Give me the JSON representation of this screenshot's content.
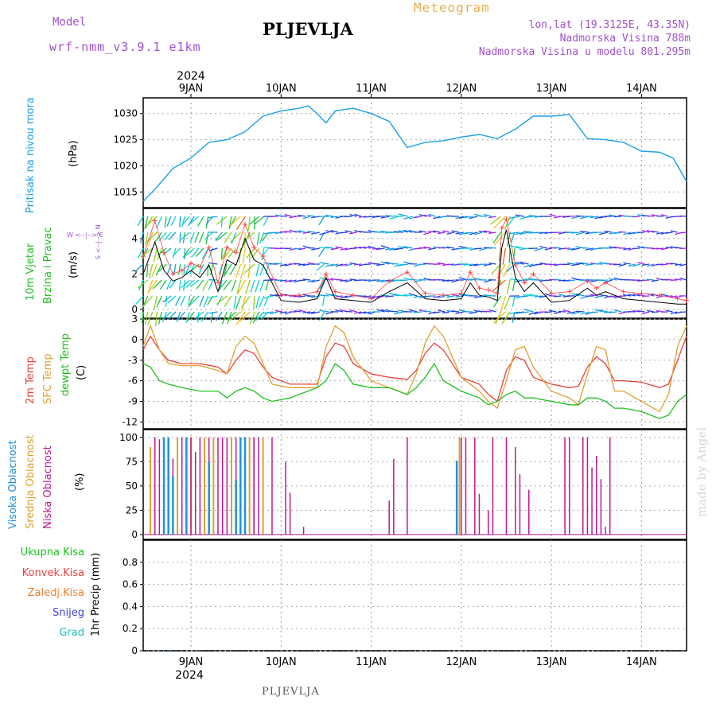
{
  "header": {
    "model_label": "Model",
    "model_name": "wrf-nmm_v3.9.1 e1km",
    "station": "PLJEVLJA",
    "title": "Meteogram",
    "lonlat": "lon,lat (19.3125E, 43.35N)",
    "altitude": "Nadmorska Visina 788m",
    "model_altitude": "Nadmorska Visina u modelu 801.295m"
  },
  "footer": {
    "station": "PLJEVLJA",
    "watermark": "made by Angel"
  },
  "colors": {
    "pressure": "#1aa0e8",
    "temp2m": "#e84040",
    "sfctemp": "#e0a030",
    "dewpt": "#20c020",
    "high_cloud": "#2090e0",
    "mid_cloud": "#e0a030",
    "low_cloud": "#c01890",
    "wind_speed": "#000000",
    "gust": "#ff4040",
    "accent_purple": "#a050d0"
  },
  "time_axis": {
    "year": "2024",
    "days": [
      "9JAN",
      "10JAN",
      "11JAN",
      "12JAN",
      "13JAN",
      "14JAN"
    ],
    "day_values": [
      1,
      2,
      3,
      4,
      5,
      6
    ],
    "range": [
      0.47,
      6.5
    ]
  },
  "panels": {
    "pressure": {
      "label1": "Pritisak na nivou mora",
      "unit": "(hPa)"
    },
    "wind": {
      "label1": "10m Vjetar",
      "label2": "Brzina i Pravac",
      "unit": "(m/s)",
      "compass": "W <--|--> E",
      "compass2": "S <--|--> N"
    },
    "temp": {
      "label1": "2m Temp",
      "label2": "SFC Temp",
      "label3": "dewpt Temp",
      "unit": "(C)"
    },
    "cloud": {
      "label1": "Visoka Oblacnost",
      "label2": "Srednja Oblacnost",
      "label3": "Niska Oblacnost",
      "unit": "(%)"
    },
    "precip": {
      "legend": [
        "Ukupna Kisa",
        "Konvek.Kisa",
        "Zaledj.Kisa",
        "Snijeg",
        "Grad"
      ],
      "unit": "1hr Precip (mm)"
    }
  },
  "chart_data": [
    {
      "type": "line",
      "name": "pressure",
      "ylim": [
        1012,
        1033
      ],
      "yticks": [
        "1015",
        "1020",
        "1025",
        "1030"
      ],
      "ytick_values": [
        1015,
        1020,
        1025,
        1030
      ],
      "x": [
        0.47,
        0.6,
        0.8,
        1.0,
        1.2,
        1.4,
        1.6,
        1.8,
        2.0,
        2.2,
        2.3,
        2.4,
        2.5,
        2.6,
        2.8,
        3.0,
        3.2,
        3.4,
        3.6,
        3.8,
        4.0,
        4.2,
        4.4,
        4.6,
        4.8,
        5.0,
        5.2,
        5.4,
        5.6,
        5.8,
        6.0,
        6.2,
        6.35,
        6.5
      ],
      "y": [
        1013.2,
        1015.5,
        1019.5,
        1021.5,
        1024.5,
        1025.0,
        1026.5,
        1029.5,
        1030.5,
        1031.0,
        1031.5,
        1030.0,
        1028.2,
        1030.5,
        1031.0,
        1030.0,
        1028.5,
        1023.5,
        1024.5,
        1024.8,
        1025.5,
        1026.0,
        1025.2,
        1027.0,
        1029.5,
        1029.5,
        1029.8,
        1025.2,
        1025.0,
        1024.5,
        1022.8,
        1022.6,
        1021.5,
        1017.0
      ]
    },
    {
      "type": "line",
      "name": "wind",
      "ylim": [
        -0.5,
        5.7
      ],
      "yticks": [
        "0",
        "2",
        "4"
      ],
      "ytick_values": [
        0,
        2,
        4
      ],
      "x": [
        0.47,
        0.6,
        0.7,
        0.8,
        0.9,
        1.0,
        1.1,
        1.2,
        1.3,
        1.4,
        1.5,
        1.6,
        1.7,
        1.8,
        2.0,
        2.2,
        2.4,
        2.5,
        2.6,
        2.8,
        3.0,
        3.2,
        3.4,
        3.6,
        3.8,
        4.0,
        4.1,
        4.2,
        4.3,
        4.4,
        4.45,
        4.5,
        4.6,
        4.7,
        4.8,
        5.0,
        5.2,
        5.4,
        5.5,
        5.6,
        5.8,
        6.0,
        6.2,
        6.4,
        6.5
      ],
      "speed": [
        2.0,
        3.8,
        2.2,
        1.6,
        1.8,
        2.2,
        1.8,
        2.5,
        1.0,
        2.8,
        2.5,
        4.0,
        2.8,
        2.5,
        0.5,
        0.4,
        0.6,
        1.8,
        0.6,
        0.5,
        0.4,
        1.0,
        1.5,
        0.6,
        0.5,
        0.6,
        1.5,
        0.8,
        0.7,
        0.5,
        3.5,
        4.5,
        1.8,
        1.0,
        1.5,
        0.4,
        0.5,
        1.2,
        0.8,
        1.0,
        0.6,
        0.5,
        0.4,
        0.3,
        0.3
      ],
      "gust": [
        3.0,
        5.0,
        3.2,
        2.0,
        2.2,
        2.6,
        2.4,
        3.5,
        1.5,
        3.5,
        3.2,
        4.8,
        3.5,
        3.0,
        0.8,
        0.8,
        1.0,
        2.0,
        1.0,
        0.8,
        0.6,
        1.6,
        2.1,
        0.9,
        0.8,
        0.9,
        2.1,
        1.2,
        1.1,
        0.9,
        4.6,
        5.1,
        2.5,
        1.5,
        2.0,
        0.9,
        1.0,
        1.6,
        1.2,
        1.5,
        1.0,
        0.9,
        0.8,
        0.6,
        0.5
      ]
    },
    {
      "type": "line",
      "name": "temperature",
      "ylim": [
        -13,
        3
      ],
      "yticks": [
        "-12",
        "-9",
        "-6",
        "-3",
        "0",
        "3"
      ],
      "ytick_values": [
        -12,
        -9,
        -6,
        -3,
        0,
        3
      ],
      "x": [
        0.47,
        0.55,
        0.65,
        0.75,
        0.9,
        1.1,
        1.3,
        1.4,
        1.5,
        1.6,
        1.7,
        1.8,
        1.9,
        2.1,
        2.3,
        2.4,
        2.5,
        2.6,
        2.7,
        2.8,
        3.0,
        3.2,
        3.4,
        3.5,
        3.6,
        3.7,
        3.8,
        4.0,
        4.2,
        4.3,
        4.4,
        4.5,
        4.6,
        4.7,
        4.8,
        5.0,
        5.2,
        5.3,
        5.4,
        5.5,
        5.6,
        5.7,
        5.8,
        6.0,
        6.2,
        6.3,
        6.4,
        6.5
      ],
      "t2m": [
        -1.5,
        0.5,
        -1.5,
        -3.0,
        -3.5,
        -3.5,
        -4.0,
        -5.0,
        -3.0,
        -1.5,
        -2.0,
        -4.0,
        -5.5,
        -6.5,
        -6.5,
        -6.5,
        -2.5,
        -0.5,
        -1.0,
        -3.5,
        -5.0,
        -5.5,
        -5.8,
        -4.5,
        -2.0,
        -0.5,
        -1.5,
        -5.5,
        -6.5,
        -8.0,
        -9.0,
        -4.5,
        -2.5,
        -3.0,
        -5.5,
        -6.5,
        -7.0,
        -6.8,
        -4.0,
        -2.5,
        -3.5,
        -6.0,
        -6.0,
        -6.2,
        -7.0,
        -6.5,
        -3.0,
        0.5
      ],
      "sfc": [
        -1.0,
        2.0,
        -1.5,
        -3.5,
        -3.8,
        -3.8,
        -4.5,
        -5.0,
        -1.0,
        0.5,
        -0.5,
        -3.5,
        -6.5,
        -7.0,
        -7.0,
        -7.0,
        -1.0,
        2.0,
        1.0,
        -2.5,
        -6.0,
        -7.0,
        -8.0,
        -5.0,
        -0.5,
        2.0,
        0.5,
        -5.5,
        -7.5,
        -9.0,
        -10.0,
        -6.0,
        -1.5,
        -1.0,
        -4.0,
        -7.5,
        -8.5,
        -9.5,
        -5.0,
        -1.0,
        -1.5,
        -7.5,
        -7.5,
        -9.0,
        -10.5,
        -8.0,
        -1.0,
        2.0
      ],
      "dewpt": [
        -3.5,
        -4.0,
        -6.0,
        -6.5,
        -7.0,
        -7.5,
        -7.5,
        -8.5,
        -7.5,
        -7.0,
        -7.5,
        -8.5,
        -9.0,
        -8.5,
        -7.5,
        -7.0,
        -6.0,
        -3.5,
        -4.5,
        -6.5,
        -7.0,
        -7.0,
        -8.0,
        -7.0,
        -5.5,
        -3.5,
        -6.0,
        -7.5,
        -8.5,
        -9.5,
        -9.0,
        -8.0,
        -7.5,
        -8.5,
        -8.5,
        -9.0,
        -9.5,
        -9.5,
        -8.5,
        -8.5,
        -9.0,
        -10.0,
        -10.0,
        -10.5,
        -11.5,
        -11.0,
        -9.0,
        -8.0
      ]
    },
    {
      "type": "bar",
      "name": "cloud",
      "ylim": [
        -5,
        108
      ],
      "yticks": [
        "0",
        "25",
        "50",
        "75",
        "100"
      ],
      "ytick_values": [
        0,
        25,
        50,
        75,
        100
      ],
      "low_x": [
        0.6,
        0.65,
        0.75,
        0.8,
        0.9,
        1.0,
        1.05,
        1.1,
        1.2,
        1.3,
        1.35,
        1.4,
        1.5,
        1.6,
        1.7,
        1.75,
        1.9,
        2.05,
        2.1,
        2.25,
        3.2,
        3.25,
        3.4,
        4.0,
        4.05,
        4.15,
        4.2,
        4.3,
        4.35,
        4.5,
        4.6,
        4.65,
        4.75,
        5.15,
        5.2,
        5.35,
        5.4,
        5.45,
        5.5,
        5.55,
        5.6,
        5.65,
        5.75
      ],
      "low_y": [
        100,
        98,
        100,
        78,
        100,
        100,
        85,
        100,
        100,
        100,
        100,
        100,
        100,
        100,
        100,
        100,
        100,
        75,
        43,
        8,
        35,
        78,
        100,
        100,
        100,
        100,
        42,
        25,
        100,
        100,
        90,
        62,
        46,
        100,
        100,
        100,
        100,
        69,
        81,
        57,
        8,
        100,
        0
      ],
      "mid_x": [
        0.55,
        0.7,
        0.85,
        1.0,
        1.15,
        1.25,
        1.45,
        1.55,
        1.65,
        1.7,
        1.8,
        3.98
      ],
      "mid_y": [
        90,
        100,
        100,
        100,
        100,
        100,
        100,
        100,
        100,
        100,
        100,
        100
      ],
      "high_x": [
        0.7,
        0.75,
        0.8,
        0.95,
        1.2,
        1.5,
        1.55,
        1.6,
        3.95
      ],
      "high_y": [
        100,
        100,
        60,
        100,
        75,
        56,
        100,
        100,
        76
      ]
    },
    {
      "type": "bar",
      "name": "precip",
      "ylim": [
        0,
        1.0
      ],
      "yticks": [
        "0",
        "0.2",
        "0.4",
        "0.6",
        "0.8"
      ],
      "ytick_values": [
        0,
        0.2,
        0.4,
        0.6,
        0.8
      ],
      "x": [
        0.75,
        0.78,
        1.05,
        1.1
      ],
      "total": [
        0.005,
        0.008,
        0.004,
        0.006
      ]
    }
  ]
}
